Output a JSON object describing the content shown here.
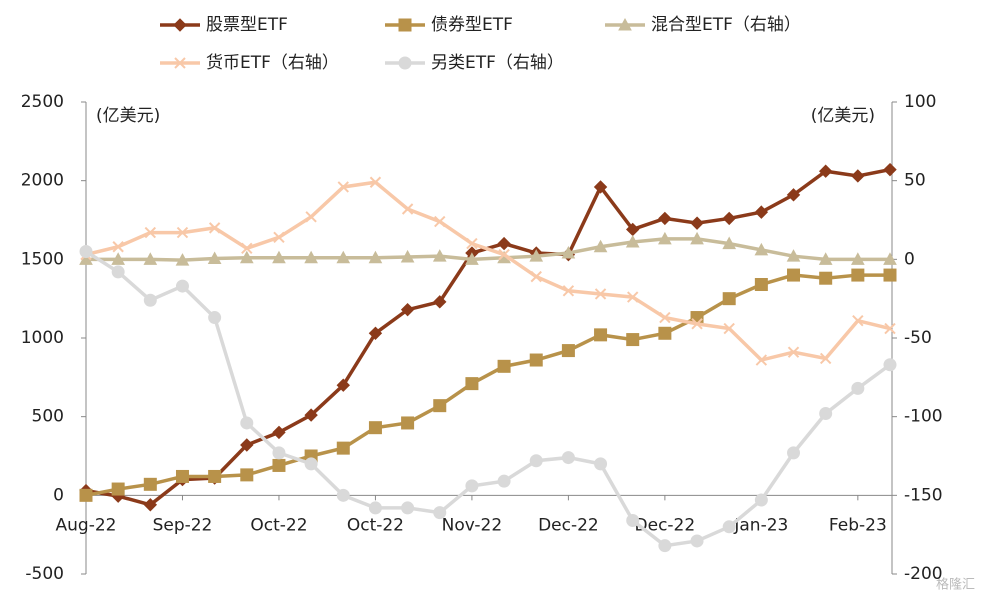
{
  "chart_data": {
    "type": "line",
    "categories": [
      "Aug-22",
      null,
      null,
      "Sep-22",
      null,
      null,
      "Oct-22",
      null,
      null,
      "Oct-22",
      null,
      null,
      "Nov-22",
      null,
      null,
      "Dec-22",
      null,
      null,
      "Dec-22",
      null,
      null,
      "Jan-23",
      null,
      null,
      "Feb-23",
      null
    ],
    "y_unit_label": "(亿美元)",
    "y2_unit_label": "(亿美元)",
    "ylim": [
      -500,
      2500
    ],
    "yticks": [
      -500,
      0,
      500,
      1000,
      1500,
      2000,
      2500
    ],
    "y2lim": [
      -200,
      100
    ],
    "y2ticks": [
      -200,
      -150,
      -100,
      -50,
      0,
      50,
      100
    ],
    "watermark": "格隆汇",
    "series": [
      {
        "name": "股票型ETF",
        "color": "#8b3a1a",
        "marker": "diamond",
        "values": [
          30,
          -5,
          -60,
          100,
          110,
          320,
          400,
          510,
          700,
          1030,
          1180,
          1230,
          1540,
          1600,
          1540,
          1530,
          1960,
          1690,
          1760,
          1730,
          1760,
          1800,
          1910,
          2060,
          2030,
          2070
        ]
      },
      {
        "name": "债券型ETF",
        "color": "#b8924a",
        "marker": "square",
        "values": [
          0,
          40,
          70,
          120,
          120,
          130,
          190,
          250,
          300,
          430,
          460,
          570,
          710,
          820,
          860,
          920,
          1020,
          990,
          1030,
          1130,
          1250,
          1340,
          1400,
          1380,
          1400,
          1400
        ]
      },
      {
        "name": "混合型ETF（右轴）",
        "color": "#c8bc9a",
        "marker": "triangle",
        "axis": "y2",
        "values": [
          0,
          0,
          0,
          -0.5,
          0.5,
          1,
          1,
          1,
          1,
          1,
          1.5,
          2,
          0,
          1,
          2,
          4,
          8,
          11,
          13,
          13,
          10,
          6,
          2,
          0,
          0,
          0
        ]
      },
      {
        "name": "货币ETF（右轴）",
        "color": "#f8c8a8",
        "marker": "x",
        "axis": "y2",
        "values": [
          3,
          8,
          17,
          17,
          20,
          7,
          14,
          27,
          46,
          49,
          32,
          24,
          10,
          3,
          -11,
          -20,
          -22,
          -24,
          -37,
          -41,
          -44,
          -64,
          -59,
          -63,
          -39,
          -44
        ]
      },
      {
        "name": "另类ETF（右轴）",
        "color": "#d9d9d9",
        "marker": "circle",
        "axis": "y2",
        "values": [
          5,
          -8,
          -26,
          -17,
          -37,
          -104,
          -123,
          -130,
          -150,
          -158,
          -158,
          -161,
          -144,
          -141,
          -128,
          -126,
          -130,
          -166,
          -182,
          -179,
          -170,
          -153,
          -123,
          -98,
          -82,
          -67
        ]
      }
    ]
  }
}
